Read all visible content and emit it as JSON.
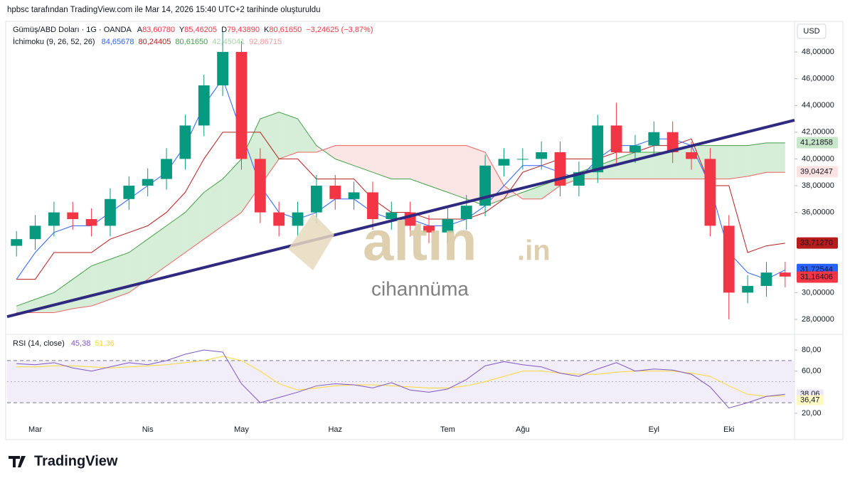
{
  "header": "hpbsc tarafından TradingView.com ile Mar 14, 2026 15:40 UTC+2 tarihinde oluşturuldu",
  "currency": "USD",
  "legend": {
    "symbol": "Gümüş/ABD Doları · 1G · OANDA",
    "open_label": "A",
    "open": "83,60780",
    "high_label": "Y",
    "high": "85,46205",
    "low_label": "D",
    "low": "79,43890",
    "close_label": "K",
    "close": "80,61650",
    "change": "−3,24625 (−3,87%)",
    "ichimoku": "İchimoku (9, 26, 52, 26)",
    "ichimoku_values": [
      {
        "text": "84,65678",
        "color": "#2962ff"
      },
      {
        "text": "80,24405",
        "color": "#b71c1c"
      },
      {
        "text": "80,61650",
        "color": "#43a047"
      },
      {
        "text": "42,45041",
        "color": "#a5d6a7"
      },
      {
        "text": "92,86715",
        "color": "#ef9a9a"
      }
    ]
  },
  "watermark": {
    "brand": "altın",
    "suffix": ".in",
    "sub": "cihannüma"
  },
  "logo": "TradingView",
  "chart_data": {
    "type": "candlestick",
    "x": [
      null,
      "Mar",
      null,
      null,
      null,
      null,
      null,
      "Nis",
      null,
      null,
      null,
      null,
      "May",
      null,
      null,
      null,
      null,
      "Haz",
      null,
      null,
      null,
      null,
      null,
      "Tem",
      null,
      null,
      null,
      "Ağu",
      null,
      null,
      null,
      null,
      null,
      null,
      "Eyl",
      null,
      null,
      null,
      "Eki",
      null,
      null,
      null
    ],
    "open": [
      33.5,
      34,
      35,
      36,
      35.5,
      35,
      37,
      38,
      38.5,
      40,
      42.5,
      45.5,
      48,
      40,
      36,
      35,
      36,
      38,
      37,
      37.5,
      35.5,
      36,
      35,
      34.5,
      35.5,
      36.5,
      39.5,
      40,
      40,
      40.5,
      38,
      39,
      42.5,
      40.5,
      41,
      42,
      40.5,
      40,
      35,
      30,
      30.5,
      31.5
    ],
    "high": [
      34.6,
      35.8,
      36.8,
      36.8,
      36.3,
      37.8,
      38.7,
      39.3,
      40.8,
      43.3,
      46.3,
      49.5,
      48.8,
      40.8,
      36.8,
      36.8,
      38.8,
      38.8,
      38.3,
      38.3,
      36.8,
      36.8,
      35.8,
      36.3,
      37.3,
      40.3,
      40.8,
      40.8,
      41.3,
      41.3,
      39.8,
      43.3,
      44.2,
      41.8,
      42.8,
      42.8,
      41.3,
      40.8,
      35.8,
      31.3,
      32.3,
      32.3
    ],
    "low": [
      32.7,
      33.2,
      34.2,
      34.7,
      34.2,
      34.2,
      36.2,
      37.2,
      37.7,
      39.2,
      41.7,
      44.7,
      39.2,
      35.2,
      34.2,
      34.2,
      35.2,
      36.2,
      36.2,
      34.7,
      34.7,
      34.2,
      33.7,
      33.7,
      34.7,
      35.7,
      38.7,
      39.2,
      39.2,
      37.2,
      37.2,
      38.2,
      39.7,
      39.7,
      40.2,
      39.7,
      39.2,
      34.2,
      28,
      29.2,
      29.7,
      30.4
    ],
    "close": [
      34,
      35,
      36,
      35.5,
      35,
      37,
      38,
      38.5,
      40,
      42.5,
      45.5,
      48,
      40,
      36,
      35,
      36,
      38,
      37,
      37.5,
      35.5,
      36,
      35,
      34.5,
      35.5,
      36.5,
      39.5,
      40,
      40,
      40.5,
      38,
      39,
      42.5,
      40.5,
      41,
      42,
      40.5,
      40,
      35,
      30,
      30.5,
      31.5,
      31.2
    ],
    "up_color": "#089981",
    "down_color": "#f23645",
    "ylim": [
      27.04,
      50.29
    ],
    "yticks": [
      {
        "value": 28,
        "label": "28,00000"
      },
      {
        "value": 30,
        "label": "30,00000"
      },
      {
        "value": 36,
        "label": "36,00000"
      },
      {
        "value": 38,
        "label": "38,00000"
      },
      {
        "value": 40,
        "label": "40,00000"
      },
      {
        "value": 42,
        "label": "42,00000"
      },
      {
        "value": 44,
        "label": "44,00000"
      },
      {
        "value": 46,
        "label": "46,00000"
      },
      {
        "value": 48,
        "label": "48,00000"
      }
    ],
    "price_labels": [
      {
        "value": 41.21858,
        "label": "41,21858",
        "bg": "#c8e6c9",
        "fg": "#ffffff"
      },
      {
        "value": 39.04247,
        "label": "39,04247",
        "bg": "#fde2e2",
        "fg": "#f06262"
      },
      {
        "value": 33.7127,
        "label": "33,71270",
        "bg": "#b71c1c",
        "fg": "#ffffff"
      },
      {
        "value": 31.72822,
        "label": "31,72822",
        "bg": "#43a047",
        "fg": "#ffffff"
      },
      {
        "value": 31.72544,
        "label": "31,72544",
        "bg": "#2962ff",
        "fg": "#ffffff"
      },
      {
        "value": 31.16406,
        "label": "31,16406",
        "bg": "#f23645",
        "fg": "#ffffff"
      }
    ],
    "ichimoku": {
      "tenkan": {
        "color": "#2962ff",
        "values": [
          31,
          33,
          34.5,
          35,
          35,
          36,
          37,
          38,
          39,
          41,
          44,
          46,
          42,
          38,
          36,
          35.5,
          36,
          37,
          37,
          36,
          35.5,
          35.5,
          35,
          35,
          35.5,
          36.5,
          38,
          39.5,
          39.5,
          39,
          38.5,
          40,
          41,
          41,
          41.5,
          41.5,
          41,
          38,
          33,
          31.5,
          31,
          31.7
        ]
      },
      "kijun": {
        "color": "#b71c1c",
        "values": [
          31,
          31,
          33,
          33,
          33,
          34,
          34.5,
          35,
          36,
          37.5,
          40,
          42,
          42,
          42,
          40,
          40,
          38.5,
          38.5,
          38.5,
          37,
          36,
          36,
          35.5,
          35.5,
          35.5,
          36,
          37,
          39,
          39.5,
          40,
          40,
          40,
          40.5,
          40.5,
          41,
          41,
          41.5,
          38,
          38,
          33,
          33.5,
          33.7
        ]
      },
      "span_a": {
        "color": "#43a047",
        "values": [
          29,
          29.5,
          30,
          31,
          32,
          32.5,
          33,
          34,
          35,
          36,
          37.5,
          38.5,
          40,
          43,
          43.5,
          43,
          41,
          40,
          39.5,
          39,
          38.5,
          38.5,
          38,
          37.5,
          37,
          36.5,
          37,
          37.5,
          38,
          38.5,
          39,
          39.5,
          40,
          40.5,
          40.5,
          40.5,
          41,
          41,
          41,
          41,
          41.2,
          41.2
        ]
      },
      "span_b": {
        "color": "#f06262",
        "values": [
          28.5,
          28.5,
          28.5,
          28.8,
          29,
          29.5,
          30,
          31,
          32,
          33,
          34,
          35,
          36,
          38,
          40,
          40.5,
          40.5,
          41,
          41,
          41,
          41,
          41,
          41,
          41,
          41,
          40.5,
          38,
          37,
          37,
          38,
          38.5,
          38.5,
          38.5,
          38.5,
          38.5,
          38.5,
          38.5,
          38.5,
          38.5,
          38.7,
          39,
          39
        ]
      },
      "cloud_up": "#a5d6a7",
      "cloud_down": "#f8c5c5"
    },
    "trendline": {
      "color": "#2e2a80",
      "start": 28.2,
      "end": 42.9
    },
    "rsi": {
      "title": "RSI (14, close)",
      "legend_values": [
        {
          "text": "45,38",
          "color": "#7e57c2"
        },
        {
          "text": "51,36",
          "color": "#fdd835"
        }
      ],
      "values": [
        67,
        66,
        68,
        63,
        60,
        64,
        68,
        66,
        70,
        76,
        80,
        78,
        48,
        30,
        35,
        40,
        46,
        48,
        47,
        44,
        49,
        42,
        40,
        43,
        52,
        65,
        69,
        66,
        64,
        58,
        55,
        62,
        68,
        60,
        62,
        61,
        57,
        45,
        25,
        30,
        36,
        38
      ],
      "color": "#7e57c2",
      "ma": [
        64,
        64,
        65,
        65,
        64,
        63,
        64,
        65,
        66,
        68,
        70,
        74,
        70,
        60,
        48,
        42,
        44,
        46,
        47,
        47,
        46,
        45,
        44,
        44,
        46,
        50,
        55,
        60,
        60,
        58,
        57,
        57,
        59,
        60,
        60,
        60,
        58,
        55,
        46,
        38,
        36,
        36.5
      ],
      "ma_color": "#fdd835",
      "ylim": [
        13.9,
        91.5
      ],
      "yticks": [
        {
          "value": 20,
          "label": "20,00"
        },
        {
          "value": 60,
          "label": "60,00"
        },
        {
          "value": 80,
          "label": "80,00"
        }
      ],
      "bands": [
        70,
        30
      ],
      "midline": 50,
      "band_fill": "#ede7f6",
      "value_labels": [
        {
          "value": 38.06,
          "label": "38,06",
          "bg": "#ede7f6",
          "fg": "#7e57c2"
        },
        {
          "value": 36.47,
          "label": "36,47",
          "bg": "#fff9c4",
          "fg": "#fbc02d"
        }
      ]
    }
  }
}
